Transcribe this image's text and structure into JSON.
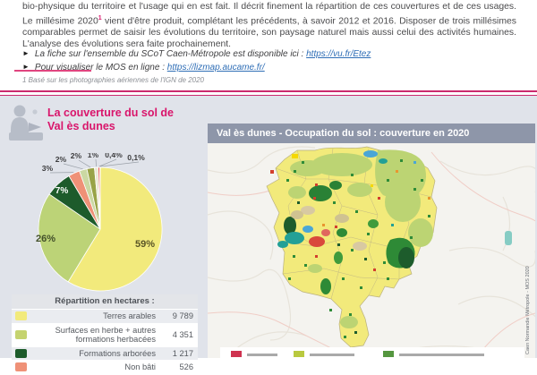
{
  "intro": {
    "part1": "bio-physique du territoire et l'usage qui en est fait. Il décrit finement la répartition de ces couvertures et de ces usages. Le millésime 2020",
    "footnote_ref": "1",
    "part2": " vient d'être produit, complétant les précédents, à savoir 2012 et 2016.  Disposer de trois millésimes comparables permet de saisir les évolutions du territoire, son paysage naturel mais aussi celui des activités humaines. L'analyse des évolutions sera faite prochainement."
  },
  "icons": {
    "bullet": "►"
  },
  "links": [
    {
      "prefix": "La fiche sur l'ensemble du SCoT Caen-Métropole est disponible ici : ",
      "url": "https://vu.fr/Etez"
    },
    {
      "prefix": "Pour visualiser le MOS en ligne : ",
      "url": "https://lizmap.aucame.fr/"
    }
  ],
  "footnote": "1 Basé sur les photographies aériennes de l'IGN de 2020",
  "left_panel": {
    "title_line1": "La couverture du sol de",
    "title_line2": "Val ès dunes",
    "table": {
      "header": "Répartition en hectares :",
      "rows": [
        {
          "label": "Terres arables",
          "value": "9 789",
          "color": "#f2ea7c"
        },
        {
          "label": "Surfaces en herbe + autres formations herbacées",
          "value": "4 351",
          "color": "#c5d36f"
        },
        {
          "label": "Formations arborées",
          "value": "1 217",
          "color": "#1d5b2b"
        },
        {
          "label": "Non bâti",
          "value": "526",
          "color": "#ef9177"
        }
      ]
    }
  },
  "chart_data": {
    "type": "pie",
    "title": "La couverture du sol de Val ès dunes",
    "unit": "percent of territory",
    "slices": [
      {
        "label": "Terres arables",
        "value": 59,
        "display": "59%",
        "color": "#f2ea7c"
      },
      {
        "label": "Surfaces en herbe + autres formations herbacées",
        "value": 26,
        "display": "26%",
        "color": "#bcd377"
      },
      {
        "label": "Formations arborées",
        "value": 7,
        "display": "7%",
        "color": "#1d5b2b"
      },
      {
        "label": "Non bâti",
        "value": 3,
        "display": "3%",
        "color": "#ef9177"
      },
      {
        "label": "",
        "value": 2,
        "display": "2%",
        "color": "#cbd8a3"
      },
      {
        "label": "",
        "value": 2,
        "display": "2%",
        "color": "#99a347"
      },
      {
        "label": "",
        "value": 1,
        "display": "1%",
        "color": "#ece9d4"
      },
      {
        "label": "",
        "value": 0.4,
        "display": "0,4%",
        "color": "#e0241c"
      },
      {
        "label": "",
        "value": 0.1,
        "display": "0,1%",
        "color": "#b7bcc1"
      }
    ]
  },
  "map_panel": {
    "header": "Val ès dunes - Occupation du sol : couverture en 2020",
    "credit": "Caen Normandie Métropole - MOS 2020"
  },
  "colors": {
    "accent_pink": "#d9156b",
    "section_bg": "#e0e3ea",
    "map_header_bg": "#8e96a9"
  }
}
